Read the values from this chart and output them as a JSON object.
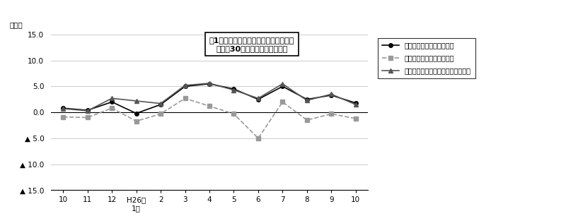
{
  "x_labels": [
    "10",
    "11",
    "12",
    "H26年\n1月",
    "2",
    "3",
    "4",
    "5",
    "6",
    "7",
    "8",
    "9",
    "10"
  ],
  "x_positions": [
    0,
    1,
    2,
    3,
    4,
    5,
    6,
    7,
    8,
    9,
    10,
    11,
    12
  ],
  "nominal_total": [
    0.8,
    0.4,
    2.0,
    -0.2,
    1.5,
    5.0,
    5.5,
    4.5,
    2.5,
    5.0,
    2.5,
    3.3,
    1.8
  ],
  "real_total": [
    -0.9,
    -1.0,
    0.8,
    -1.7,
    -0.3,
    2.7,
    1.2,
    -0.3,
    -5.0,
    2.0,
    -1.5,
    -0.3,
    -1.2
  ],
  "nominal_scheduled": [
    0.7,
    0.3,
    2.7,
    2.2,
    1.7,
    5.2,
    5.6,
    4.3,
    2.7,
    5.5,
    2.3,
    3.5,
    1.5
  ],
  "title_line1": "図1　賃金指数の推移（対前年同月比）",
  "title_line2": "－規模30人以上－　調査産業計",
  "ylabel": "（％）",
  "ylim_min": -15.0,
  "ylim_max": 15.0,
  "yticks": [
    15.0,
    10.0,
    5.0,
    0.0,
    -5.0,
    -10.0,
    -15.0
  ],
  "legend_line1": "名目賃金（現金給与総額）",
  "legend_line2": "実質賃金（現金給与総額）",
  "legend_line3": "名目賃金（きまって支給する給与）",
  "color_nominal_total": "#000000",
  "color_real_total": "#999999",
  "color_nominal_scheduled": "#555555",
  "bg_color": "#ffffff",
  "grid_color": "#cccccc"
}
